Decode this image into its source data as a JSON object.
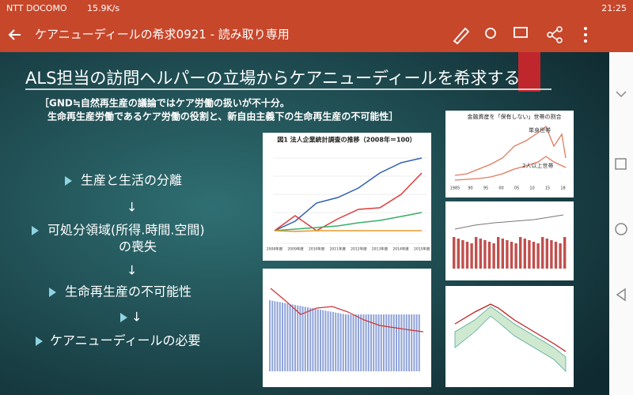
{
  "status_bar": {
    "carrier": "NTT DOCOMO",
    "speed": "15.9K/s",
    "time": "21:25"
  },
  "app_bar": {
    "title": "ケアニューディールの希求0921 - 読み取り専用"
  },
  "slide": {
    "title": "ALS担当の訪問ヘルパーの立場からケアニューディールを希求する",
    "subtitle": [
      "［GND≒自然再生産の議論ではケア労働の扱いが不十分。",
      "生命再生産労働であるケア労働の役割と、新自由主義下の生命再生産の不可能性］"
    ],
    "flow": [
      "生産と生活の分離",
      "↓",
      "可処分領域(所得.時間.空間)",
      "の喪失",
      "↓",
      "生命再生産の不可能性",
      "↓",
      "ケアニューディールの必要"
    ],
    "figures": [
      {
        "title": "図1 法人企業統計調査の推移（2008年＝100）",
        "x_labels": [
          "2008年度",
          "2009年度",
          "2010年度",
          "2011年度",
          "2012年度",
          "2013年度",
          "2014年度",
          "2015年度"
        ]
      },
      {
        "title": "金融資産を「保有しない」世帯の割合",
        "labels": [
          "単身世帯",
          "2人以上世帯"
        ],
        "x_labels": [
          "1985",
          "90",
          "95",
          "00",
          "05",
          "10",
          "15",
          "18"
        ]
      }
    ]
  }
}
